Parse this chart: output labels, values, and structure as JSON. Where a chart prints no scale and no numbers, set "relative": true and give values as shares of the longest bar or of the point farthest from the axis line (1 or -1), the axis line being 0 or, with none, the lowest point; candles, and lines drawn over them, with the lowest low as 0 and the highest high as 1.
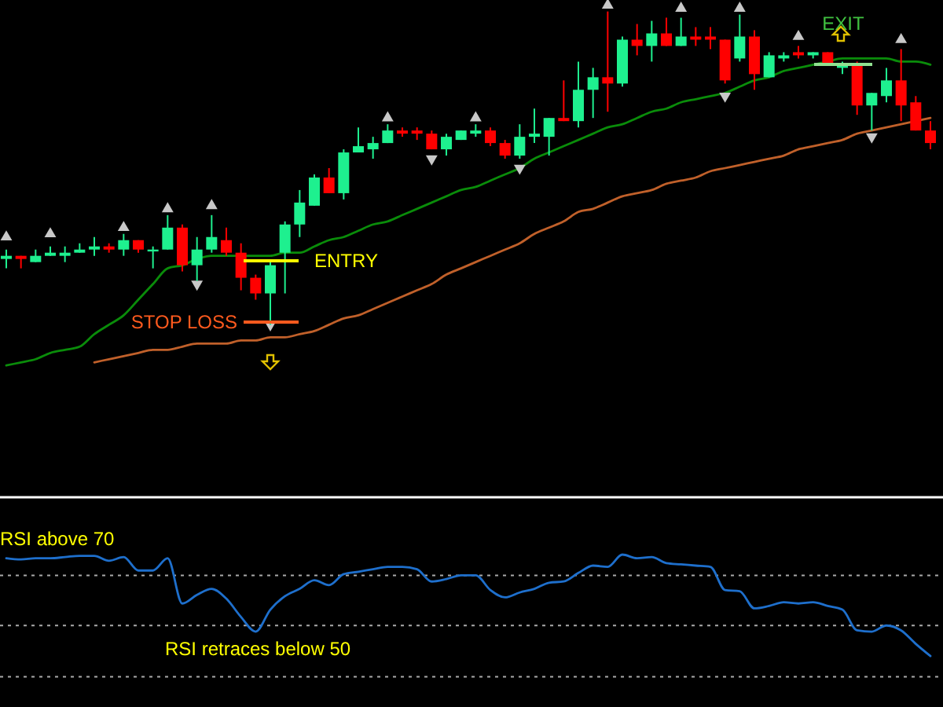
{
  "chart_data": [
    {
      "type": "candlestick",
      "relative": true,
      "categories": [
        null,
        null,
        null,
        null,
        null,
        null,
        null,
        null,
        null,
        null,
        null,
        null,
        null,
        null,
        null,
        null,
        null,
        null,
        null,
        null,
        null,
        null,
        null,
        null,
        null,
        null,
        null,
        null,
        null,
        null,
        null,
        null,
        null,
        null,
        null,
        null,
        null,
        null,
        null,
        null,
        null,
        null,
        null,
        null,
        null,
        null,
        null,
        null,
        null,
        null,
        null,
        null,
        null,
        null,
        null,
        null,
        null,
        null,
        null,
        null,
        null,
        null,
        null,
        null
      ],
      "ohlc": [
        [
          0.21,
          0.24,
          0.18,
          0.22
        ],
        [
          0.22,
          0.22,
          0.18,
          0.21
        ],
        [
          0.2,
          0.24,
          0.2,
          0.22
        ],
        [
          0.22,
          0.25,
          0.22,
          0.23
        ],
        [
          0.22,
          0.25,
          0.2,
          0.23
        ],
        [
          0.23,
          0.26,
          0.23,
          0.24
        ],
        [
          0.24,
          0.28,
          0.22,
          0.25
        ],
        [
          0.25,
          0.26,
          0.23,
          0.24
        ],
        [
          0.24,
          0.29,
          0.22,
          0.27
        ],
        [
          0.27,
          0.27,
          0.23,
          0.24
        ],
        [
          0.24,
          0.25,
          0.18,
          0.24
        ],
        [
          0.24,
          0.35,
          0.24,
          0.31
        ],
        [
          0.31,
          0.32,
          0.17,
          0.19
        ],
        [
          0.19,
          0.28,
          0.14,
          0.24
        ],
        [
          0.24,
          0.35,
          0.23,
          0.28
        ],
        [
          0.27,
          0.31,
          0.22,
          0.23
        ],
        [
          0.23,
          0.26,
          0.11,
          0.15
        ],
        [
          0.15,
          0.16,
          0.08,
          0.1
        ],
        [
          0.1,
          0.2,
          0,
          0.19
        ],
        [
          0.23,
          0.33,
          0.1,
          0.32
        ],
        [
          0.32,
          0.43,
          0.28,
          0.39
        ],
        [
          0.38,
          0.48,
          0.38,
          0.47
        ],
        [
          0.47,
          0.5,
          0.42,
          0.42
        ],
        [
          0.42,
          0.56,
          0.4,
          0.55
        ],
        [
          0.55,
          0.63,
          0.55,
          0.57
        ],
        [
          0.56,
          0.6,
          0.53,
          0.58
        ],
        [
          0.58,
          0.64,
          0.58,
          0.62
        ],
        [
          0.62,
          0.63,
          0.6,
          0.61
        ],
        [
          0.62,
          0.63,
          0.59,
          0.61
        ],
        [
          0.61,
          0.62,
          0.56,
          0.56
        ],
        [
          0.56,
          0.61,
          0.54,
          0.6
        ],
        [
          0.59,
          0.62,
          0.59,
          0.62
        ],
        [
          0.61,
          0.64,
          0.6,
          0.62
        ],
        [
          0.62,
          0.63,
          0.57,
          0.58
        ],
        [
          0.58,
          0.59,
          0.53,
          0.54
        ],
        [
          0.54,
          0.64,
          0.53,
          0.6
        ],
        [
          0.6,
          0.69,
          0.58,
          0.61
        ],
        [
          0.6,
          0.66,
          0.54,
          0.66
        ],
        [
          0.66,
          0.78,
          0.65,
          0.65
        ],
        [
          0.65,
          0.84,
          0.63,
          0.75
        ],
        [
          0.75,
          0.82,
          0.66,
          0.79
        ],
        [
          0.79,
          1,
          0.68,
          0.77
        ],
        [
          0.77,
          0.92,
          0.76,
          0.91
        ],
        [
          0.91,
          0.96,
          0.86,
          0.89
        ],
        [
          0.89,
          0.97,
          0.84,
          0.93
        ],
        [
          0.93,
          0.98,
          0.89,
          0.89
        ],
        [
          0.89,
          0.98,
          0.89,
          0.92
        ],
        [
          0.92,
          0.95,
          0.89,
          0.91
        ],
        [
          0.92,
          0.95,
          0.88,
          0.91
        ],
        [
          0.91,
          0.91,
          0.77,
          0.78
        ],
        [
          0.85,
          0.99,
          0.84,
          0.92
        ],
        [
          0.92,
          0.94,
          0.75,
          0.8
        ],
        [
          0.79,
          0.87,
          0.79,
          0.86
        ],
        [
          0.85,
          0.87,
          0.84,
          0.86
        ],
        [
          0.87,
          0.89,
          0.85,
          0.86
        ],
        [
          0.86,
          0.87,
          0.85,
          0.87
        ],
        [
          0.87,
          0.87,
          0.83,
          0.83
        ],
        [
          0.82,
          0.84,
          0.8,
          0.83
        ],
        [
          0.83,
          0.84,
          0.67,
          0.7
        ],
        [
          0.7,
          0.74,
          0.62,
          0.74
        ],
        [
          0.73,
          0.82,
          0.71,
          0.78
        ],
        [
          0.78,
          0.88,
          0.65,
          0.7
        ],
        [
          0.71,
          0.73,
          0.62,
          0.62
        ],
        [
          0.62,
          0.65,
          0.56,
          0.58
        ]
      ],
      "colors": [
        "#1ef08f",
        "#ff0000",
        "#1ef08f",
        "#1ef08f",
        "#1ef08f",
        "#1ef08f",
        "#1ef08f",
        "#ff0000",
        "#1ef08f",
        "#ff0000",
        "#1ef08f",
        "#1ef08f",
        "#ff0000",
        "#1ef08f",
        "#1ef08f",
        "#ff0000",
        "#ff0000",
        "#ff0000",
        "#1ef08f",
        "#1ef08f",
        "#1ef08f",
        "#1ef08f",
        "#ff0000",
        "#1ef08f",
        "#1ef08f",
        "#1ef08f",
        "#1ef08f",
        "#ff0000",
        "#ff0000",
        "#ff0000",
        "#1ef08f",
        "#1ef08f",
        "#1ef08f",
        "#ff0000",
        "#ff0000",
        "#1ef08f",
        "#1ef08f",
        "#1ef08f",
        "#ff0000",
        "#1ef08f",
        "#1ef08f",
        "#ff0000",
        "#1ef08f",
        "#ff0000",
        "#1ef08f",
        "#ff0000",
        "#1ef08f",
        "#ff0000",
        "#ff0000",
        "#ff0000",
        "#1ef08f",
        "#ff0000",
        "#1ef08f",
        "#1ef08f",
        "#ff0000",
        "#1ef08f",
        "#ff0000",
        "#1ef08f",
        "#ff0000",
        "#1ef08f",
        "#1ef08f",
        "#ff0000",
        "#ff0000",
        "#ff0000"
      ],
      "series": [
        {
          "type": "line",
          "color": "#0a8c0a",
          "values": [
            -0.13,
            -0.12,
            -0.11,
            -0.09,
            -0.08,
            -0.07,
            -0.03,
            0,
            0.03,
            0.08,
            0.13,
            0.18,
            0.19,
            0.21,
            0.22,
            0.22,
            0.22,
            0.22,
            0.22,
            0.23,
            0.23,
            0.25,
            0.27,
            0.28,
            0.3,
            0.32,
            0.33,
            0.35,
            0.37,
            0.39,
            0.41,
            0.43,
            0.44,
            0.46,
            0.48,
            0.5,
            0.53,
            0.55,
            0.57,
            0.59,
            0.61,
            0.63,
            0.64,
            0.66,
            0.68,
            0.69,
            0.71,
            0.72,
            0.73,
            0.74,
            0.76,
            0.78,
            0.79,
            0.81,
            0.82,
            0.83,
            0.84,
            0.85,
            0.85,
            0.85,
            0.85,
            0.84,
            0.84,
            0.83
          ]
        },
        {
          "type": "line",
          "color": "#c0602a",
          "values": [
            null,
            null,
            null,
            null,
            null,
            null,
            -0.12,
            -0.11,
            -0.1,
            -0.09,
            -0.08,
            -0.08,
            -0.07,
            -0.06,
            -0.06,
            -0.06,
            -0.05,
            -0.05,
            -0.04,
            -0.04,
            -0.03,
            -0.02,
            0,
            0.02,
            0.03,
            0.05,
            0.07,
            0.09,
            0.11,
            0.13,
            0.16,
            0.18,
            0.2,
            0.22,
            0.24,
            0.26,
            0.29,
            0.31,
            0.33,
            0.36,
            0.37,
            0.39,
            0.41,
            0.42,
            0.43,
            0.45,
            0.46,
            0.47,
            0.49,
            0.5,
            0.51,
            0.52,
            0.53,
            0.54,
            0.56,
            0.57,
            0.58,
            0.59,
            0.61,
            0.62,
            0.63,
            0.64,
            0.65,
            0.66
          ]
        },
        {
          "type": "scatter",
          "color": "#c8c8c8",
          "marker": "triangle",
          "values": [
            0.28,
            null,
            null,
            0.29,
            null,
            null,
            null,
            null,
            0.31,
            null,
            null,
            0.37,
            null,
            null,
            0.38,
            null,
            null,
            null,
            null,
            null,
            null,
            null,
            null,
            null,
            null,
            null,
            0.66,
            null,
            null,
            null,
            null,
            null,
            0.66,
            null,
            null,
            null,
            null,
            null,
            null,
            null,
            null,
            1.02,
            null,
            null,
            null,
            null,
            1.01,
            null,
            null,
            null,
            1.01,
            null,
            null,
            null,
            0.92,
            null,
            null,
            null,
            null,
            null,
            null,
            0.91,
            null,
            null
          ]
        },
        {
          "type": "scatter",
          "color": "#c8c8c8",
          "marker": "triangle",
          "values": [
            null,
            null,
            null,
            null,
            null,
            null,
            null,
            null,
            null,
            null,
            null,
            null,
            null,
            0.13,
            null,
            null,
            null,
            null,
            0,
            null,
            null,
            null,
            null,
            null,
            null,
            null,
            null,
            null,
            null,
            0.53,
            null,
            null,
            null,
            null,
            null,
            0.5,
            null,
            null,
            null,
            null,
            null,
            null,
            null,
            null,
            null,
            null,
            null,
            null,
            null,
            0.73,
            null,
            null,
            null,
            null,
            null,
            null,
            null,
            null,
            null,
            0.6,
            null,
            null,
            null,
            null
          ]
        }
      ],
      "annotations": [
        "ENTRY",
        "STOP LOSS",
        "EXIT"
      ]
    },
    {
      "type": "line",
      "relative": true,
      "categories": [
        null,
        null,
        null,
        null,
        null,
        null,
        null,
        null,
        null,
        null,
        null,
        null,
        null,
        null,
        null,
        null,
        null,
        null,
        null,
        null,
        null,
        null,
        null,
        null,
        null,
        null,
        null,
        null,
        null,
        null,
        null,
        null,
        null,
        null,
        null,
        null,
        null,
        null,
        null,
        null,
        null,
        null,
        null,
        null,
        null,
        null,
        null,
        null,
        null,
        null,
        null,
        null,
        null,
        null,
        null,
        null,
        null,
        null,
        null,
        null,
        null,
        null,
        null,
        null
      ],
      "series": [
        {
          "color": "#1e6fcc",
          "values": [
            0.97,
            0.96,
            0.97,
            0.97,
            0.98,
            0.99,
            0.99,
            0.95,
            0.98,
            0.87,
            0.87,
            0.97,
            0.6,
            0.67,
            0.72,
            0.64,
            0.49,
            0.37,
            0.55,
            0.66,
            0.72,
            0.79,
            0.75,
            0.84,
            0.86,
            0.88,
            0.9,
            0.9,
            0.88,
            0.78,
            0.8,
            0.83,
            0.83,
            0.71,
            0.65,
            0.69,
            0.72,
            0.77,
            0.78,
            0.85,
            0.91,
            0.9,
            1,
            0.97,
            0.98,
            0.93,
            0.92,
            0.91,
            0.9,
            0.71,
            0.7,
            0.56,
            0.58,
            0.61,
            0.6,
            0.61,
            0.58,
            0.55,
            0.38,
            0.37,
            0.42,
            0.38,
            0.27,
            0.17
          ]
        }
      ],
      "ref_lines": [
        {
          "axis": "y",
          "value": 0.83,
          "color": "#aaaaaa",
          "line_style": "dotted"
        },
        {
          "axis": "y",
          "value": 0.42,
          "color": "#aaaaaa",
          "line_style": "dotted"
        },
        {
          "axis": "y",
          "value": 0,
          "color": "#aaaaaa",
          "line_style": "dotted"
        }
      ],
      "annotations": [
        "RSI above 70",
        "RSI retraces below 50"
      ]
    }
  ]
}
